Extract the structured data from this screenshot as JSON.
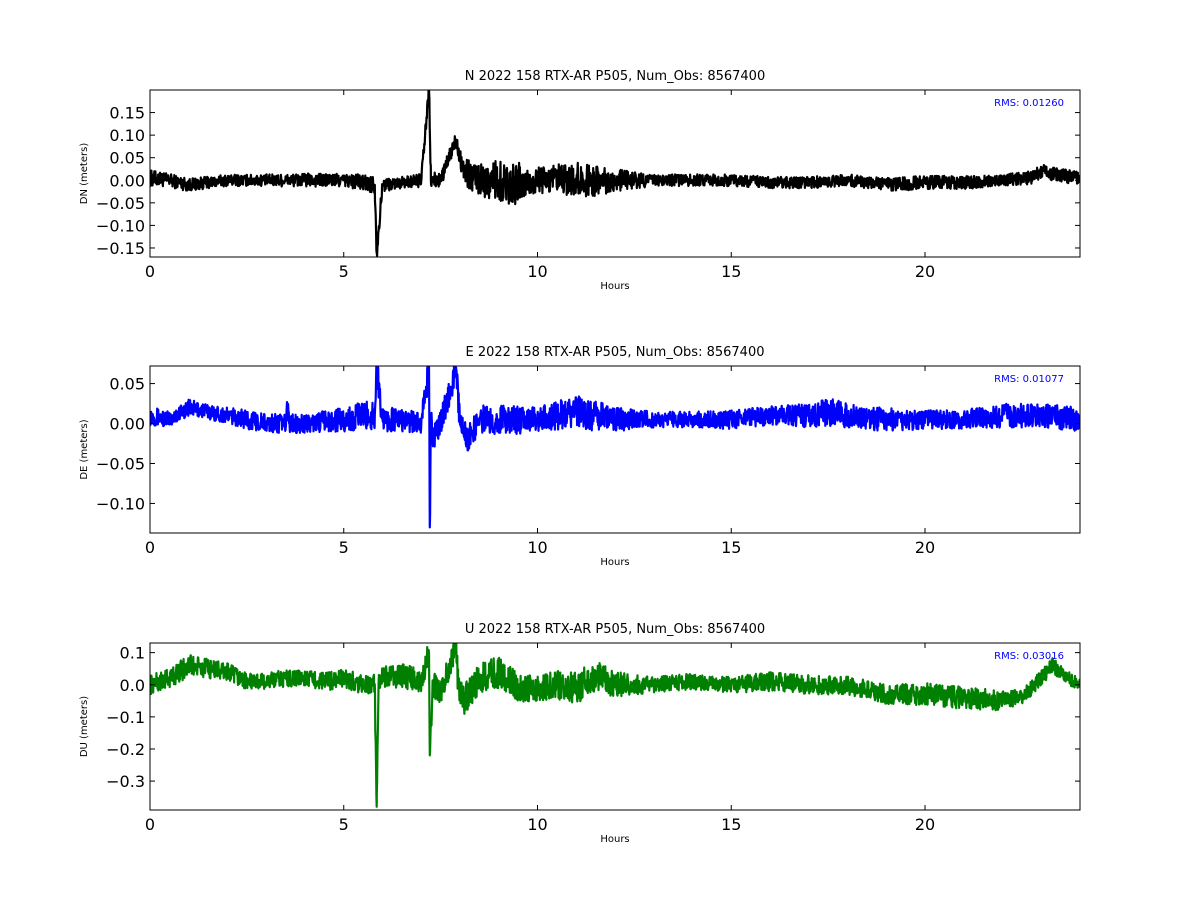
{
  "chart_data": [
    {
      "type": "line",
      "title": "N 2022 158 RTX-AR  P505, Num_Obs: 8567400",
      "xlabel": "Hours",
      "ylabel": "DN (meters)",
      "xlim": [
        0,
        24
      ],
      "ylim": [
        -0.17,
        0.2
      ],
      "xticks": [
        0,
        5,
        10,
        15,
        20
      ],
      "xtick_labels": [
        "0",
        "5",
        "10",
        "15",
        "20"
      ],
      "yticks": [
        -0.15,
        -0.1,
        -0.05,
        0.0,
        0.05,
        0.1,
        0.15
      ],
      "ytick_labels": [
        "−0.15",
        "−0.10",
        "−0.05",
        "0.00",
        "0.05",
        "0.10",
        "0.15"
      ],
      "annotation": "RMS:  0.01260",
      "annotation_color": "#0000ff",
      "series": [
        {
          "color": "#000000",
          "x": [
            0,
            0.5,
            1,
            1.5,
            2,
            3,
            4,
            5,
            5.5,
            5.8,
            5.85,
            6,
            6.5,
            7,
            7.2,
            7.25,
            7.3,
            7.5,
            7.9,
            8.1,
            8.5,
            9,
            9.5,
            10,
            10.5,
            11,
            11.5,
            12,
            13,
            14,
            15,
            16,
            17,
            18,
            19,
            20,
            21,
            22,
            22.7,
            23,
            23.5,
            24
          ],
          "center": [
            0.005,
            0.0,
            -0.01,
            -0.005,
            0.0,
            0.0,
            0.0,
            0.0,
            -0.005,
            -0.01,
            -0.16,
            -0.01,
            -0.005,
            0.0,
            0.2,
            0.0,
            0.0,
            0.0,
            0.09,
            0.02,
            0.0,
            0.0,
            -0.01,
            0.0,
            0.0,
            0.0,
            0.0,
            0.0,
            0.0,
            0.0,
            0.0,
            -0.005,
            -0.005,
            0.0,
            -0.01,
            -0.005,
            -0.005,
            0.0,
            0.005,
            0.02,
            0.01,
            0.005
          ],
          "amp": [
            0.018,
            0.015,
            0.015,
            0.013,
            0.013,
            0.013,
            0.015,
            0.015,
            0.018,
            0.02,
            0.02,
            0.015,
            0.013,
            0.015,
            0.02,
            0.02,
            0.018,
            0.015,
            0.02,
            0.03,
            0.035,
            0.045,
            0.05,
            0.03,
            0.035,
            0.04,
            0.035,
            0.025,
            0.013,
            0.013,
            0.013,
            0.013,
            0.013,
            0.013,
            0.015,
            0.015,
            0.015,
            0.013,
            0.015,
            0.015,
            0.015,
            0.015
          ]
        }
      ]
    },
    {
      "type": "line",
      "title": "E 2022 158 RTX-AR  P505, Num_Obs: 8567400",
      "xlabel": "Hours",
      "ylabel": "DE (meters)",
      "xlim": [
        0,
        24
      ],
      "ylim": [
        -0.137,
        0.072
      ],
      "xticks": [
        0,
        5,
        10,
        15,
        20
      ],
      "xtick_labels": [
        "0",
        "5",
        "10",
        "15",
        "20"
      ],
      "yticks": [
        -0.1,
        -0.05,
        0.0,
        0.05
      ],
      "ytick_labels": [
        "−0.10",
        "−0.05",
        "0.00",
        "0.05"
      ],
      "annotation": "RMS:  0.01077",
      "annotation_color": "#0000ff",
      "series": [
        {
          "color": "#0000ff",
          "x": [
            0,
            0.5,
            1,
            1.5,
            2,
            2.5,
            3,
            3.5,
            3.55,
            3.6,
            4,
            5,
            5.5,
            5.8,
            5.85,
            6,
            6.5,
            7,
            7.2,
            7.22,
            7.25,
            7.3,
            7.5,
            7.9,
            8,
            8.2,
            8.5,
            9,
            9.5,
            10,
            10.5,
            11,
            11.5,
            12,
            13,
            14,
            15,
            16,
            17,
            17.5,
            18,
            19,
            20,
            21,
            22,
            23,
            24
          ],
          "center": [
            0.01,
            0.005,
            0.02,
            0.015,
            0.01,
            0.005,
            0.0,
            0.0,
            0.02,
            0.0,
            0.0,
            0.005,
            0.01,
            0.01,
            0.07,
            0.005,
            0.005,
            0.0,
            0.07,
            -0.13,
            0.01,
            -0.02,
            0.0,
            0.07,
            0.0,
            -0.02,
            0.005,
            0.005,
            0.005,
            0.005,
            0.01,
            0.015,
            0.01,
            0.005,
            0.005,
            0.005,
            0.005,
            0.01,
            0.01,
            0.015,
            0.01,
            0.005,
            0.005,
            0.005,
            0.01,
            0.01,
            0.005
          ],
          "amp": [
            0.012,
            0.01,
            0.01,
            0.01,
            0.01,
            0.012,
            0.012,
            0.012,
            0.015,
            0.012,
            0.012,
            0.015,
            0.018,
            0.02,
            0.02,
            0.015,
            0.015,
            0.012,
            0.02,
            0.02,
            0.02,
            0.015,
            0.015,
            0.02,
            0.015,
            0.015,
            0.018,
            0.018,
            0.018,
            0.015,
            0.018,
            0.02,
            0.02,
            0.015,
            0.01,
            0.01,
            0.012,
            0.012,
            0.015,
            0.018,
            0.015,
            0.015,
            0.012,
            0.012,
            0.015,
            0.015,
            0.015
          ]
        }
      ]
    },
    {
      "type": "line",
      "title": "U 2022 158 RTX-AR  P505, Num_Obs: 8567400",
      "xlabel": "Hours",
      "ylabel": "DU (meters)",
      "xlim": [
        0,
        24
      ],
      "ylim": [
        -0.39,
        0.13
      ],
      "xticks": [
        0,
        5,
        10,
        15,
        20
      ],
      "xtick_labels": [
        "0",
        "5",
        "10",
        "15",
        "20"
      ],
      "yticks": [
        -0.3,
        -0.2,
        -0.1,
        0.0,
        0.1
      ],
      "ytick_labels": [
        "−0.3",
        "−0.2",
        "−0.1",
        "0.0",
        "0.1"
      ],
      "annotation": "RMS:  0.03016",
      "annotation_color": "#0000ff",
      "series": [
        {
          "color": "#008000",
          "x": [
            0,
            0.5,
            1,
            1.5,
            2,
            2.5,
            3,
            3.5,
            4,
            4.5,
            5,
            5.5,
            5.8,
            5.85,
            5.9,
            6,
            6.5,
            7,
            7.2,
            7.22,
            7.3,
            7.5,
            7.9,
            7.95,
            8.1,
            8.5,
            9,
            9.5,
            10,
            10.5,
            11,
            11.5,
            12,
            13,
            14,
            15,
            16,
            17,
            18,
            19,
            20,
            21,
            22,
            22.5,
            23,
            23.3,
            23.7,
            24
          ],
          "center": [
            0.0,
            0.02,
            0.06,
            0.05,
            0.04,
            0.01,
            0.01,
            0.02,
            0.02,
            0.01,
            0.02,
            0.0,
            0.0,
            -0.38,
            0.0,
            0.02,
            0.03,
            0.01,
            0.1,
            -0.22,
            0.0,
            -0.02,
            0.12,
            0.0,
            -0.05,
            0.02,
            0.04,
            -0.01,
            -0.01,
            0.0,
            -0.01,
            0.03,
            0.0,
            0.0,
            0.01,
            0.0,
            0.01,
            0.0,
            0.0,
            -0.03,
            -0.03,
            -0.04,
            -0.05,
            -0.04,
            0.02,
            0.06,
            0.02,
            0.0
          ],
          "amp": [
            0.03,
            0.03,
            0.035,
            0.03,
            0.03,
            0.025,
            0.025,
            0.03,
            0.025,
            0.03,
            0.03,
            0.03,
            0.035,
            0.03,
            0.03,
            0.035,
            0.04,
            0.035,
            0.04,
            0.04,
            0.04,
            0.04,
            0.04,
            0.045,
            0.05,
            0.045,
            0.05,
            0.045,
            0.04,
            0.045,
            0.05,
            0.05,
            0.04,
            0.025,
            0.025,
            0.025,
            0.03,
            0.03,
            0.03,
            0.03,
            0.035,
            0.035,
            0.03,
            0.025,
            0.025,
            0.025,
            0.02,
            0.02
          ]
        }
      ]
    }
  ]
}
